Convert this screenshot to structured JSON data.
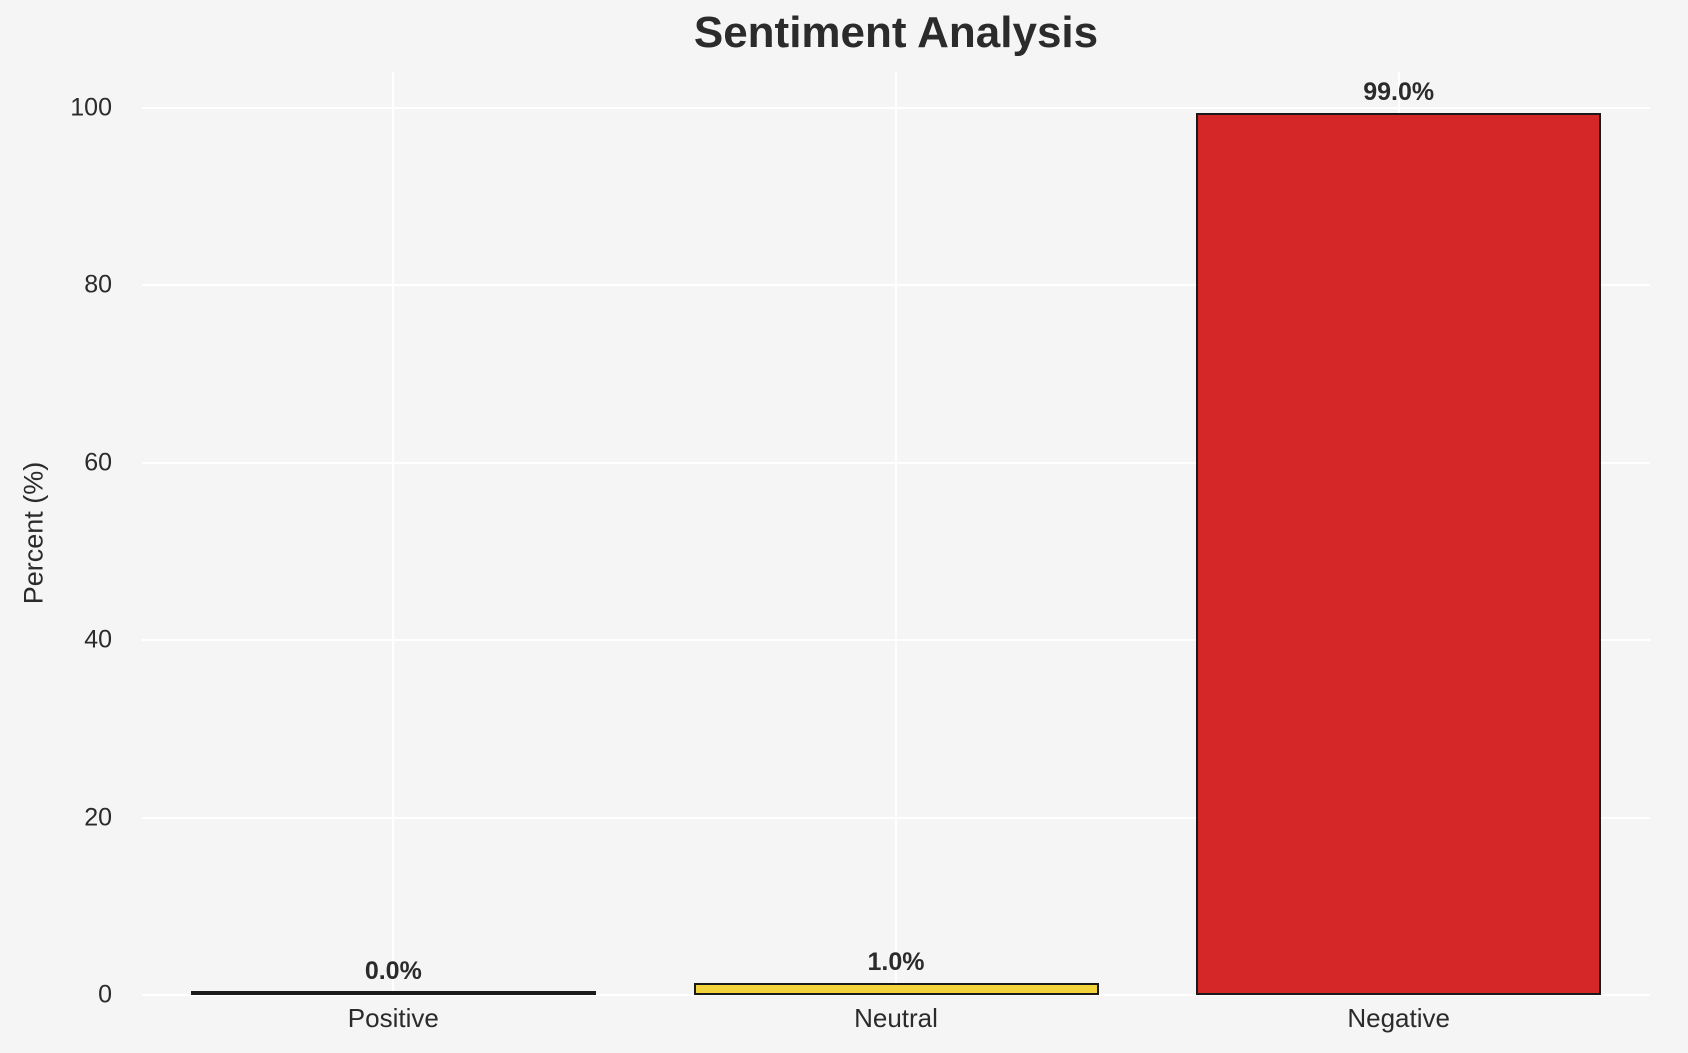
{
  "figure": {
    "background": "#f5f5f6"
  },
  "chart_data": {
    "type": "bar",
    "title": "Sentiment Analysis",
    "xlabel": "",
    "ylabel": "Percent (%)",
    "categories": [
      "Positive",
      "Neutral",
      "Negative"
    ],
    "values": [
      0.0,
      1.0,
      99.0
    ],
    "value_labels": [
      "0.0%",
      "1.0%",
      "99.0%"
    ],
    "bar_colors": [
      "#f5f5f6",
      "#f3d33c",
      "#d62728"
    ],
    "bar_edge_color": "#1a1a1a",
    "yticks": [
      0,
      20,
      40,
      60,
      80,
      100
    ],
    "ytick_labels": [
      "0",
      "20",
      "40",
      "60",
      "80",
      "100"
    ],
    "ylim": [
      0,
      104
    ],
    "grid": true,
    "grid_color": "#ffffff",
    "legend_position": "none",
    "text_color": "#2b2b2b"
  }
}
